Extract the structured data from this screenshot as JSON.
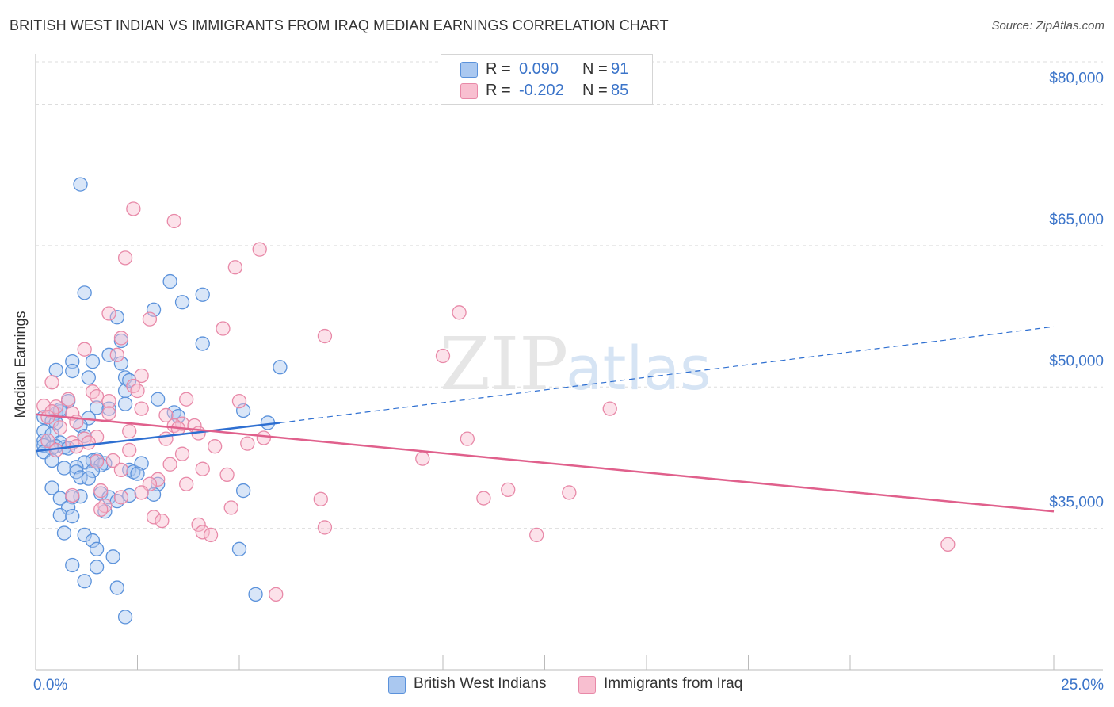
{
  "header": {
    "title": "BRITISH WEST INDIAN VS IMMIGRANTS FROM IRAQ MEDIAN EARNINGS CORRELATION CHART",
    "source": "Source: ZipAtlas.com"
  },
  "watermark": {
    "zip": "ZIP",
    "atlas": "atlas"
  },
  "colors": {
    "blue_fill": "#aac8f0",
    "blue_stroke": "#5b92db",
    "blue_line": "#2e6fd1",
    "pink_fill": "#f8bfd0",
    "pink_stroke": "#e889a8",
    "pink_line": "#e0608c",
    "axis_text": "#3b74c9",
    "grid": "#dddddd"
  },
  "legend": {
    "items": [
      {
        "r_label": "R =",
        "r_value": "0.090",
        "n_label": "N =",
        "n_value": "91"
      },
      {
        "r_label": "R =",
        "r_value": "-0.202",
        "n_label": "N =",
        "n_value": "85"
      }
    ]
  },
  "chart_data": {
    "type": "scatter",
    "title": "BRITISH WEST INDIAN VS IMMIGRANTS FROM IRAQ MEDIAN EARNINGS CORRELATION CHART",
    "xlabel": "",
    "ylabel": "Median Earnings",
    "x_unit": "%",
    "xlim": [
      0,
      25
    ],
    "ylim": [
      20000,
      84500
    ],
    "x_tick_labels": [
      "0.0%",
      "25.0%"
    ],
    "y_ticks": [
      35000,
      50000,
      65000,
      80000
    ],
    "y_tick_labels": [
      "$35,000",
      "$50,000",
      "$65,000",
      "$80,000"
    ],
    "grid": true,
    "legend_position": "top-center",
    "series": [
      {
        "name": "British West Indians",
        "r": 0.09,
        "n": 91,
        "trend": {
          "x": [
            0.0,
            6.0
          ],
          "y": [
            43200,
            46200
          ]
        },
        "trend_extension": {
          "x": [
            6.0,
            25.0
          ],
          "y": [
            46200,
            56400
          ]
        },
        "points": [
          [
            1.1,
            71500
          ],
          [
            1.2,
            60000
          ],
          [
            3.3,
            61200
          ],
          [
            4.1,
            59800
          ],
          [
            3.6,
            59000
          ],
          [
            2.9,
            58200
          ],
          [
            2.0,
            57400
          ],
          [
            2.1,
            54900
          ],
          [
            1.8,
            53400
          ],
          [
            1.4,
            52700
          ],
          [
            0.9,
            52700
          ],
          [
            0.5,
            51800
          ],
          [
            0.9,
            51700
          ],
          [
            6.0,
            52100
          ],
          [
            2.1,
            52500
          ],
          [
            1.3,
            51000
          ],
          [
            2.2,
            51000
          ],
          [
            2.2,
            49600
          ],
          [
            2.2,
            48200
          ],
          [
            3.0,
            48700
          ],
          [
            3.4,
            47300
          ],
          [
            0.8,
            48500
          ],
          [
            1.5,
            47800
          ],
          [
            1.8,
            47700
          ],
          [
            5.1,
            47500
          ],
          [
            0.5,
            47200
          ],
          [
            0.6,
            47400
          ],
          [
            0.2,
            46800
          ],
          [
            1.3,
            46700
          ],
          [
            3.5,
            46900
          ],
          [
            0.4,
            46400
          ],
          [
            0.5,
            46200
          ],
          [
            1.1,
            45900
          ],
          [
            5.7,
            46200
          ],
          [
            0.2,
            45300
          ],
          [
            0.4,
            45000
          ],
          [
            1.2,
            44800
          ],
          [
            0.2,
            44300
          ],
          [
            0.6,
            44100
          ],
          [
            0.2,
            43800
          ],
          [
            0.5,
            43700
          ],
          [
            0.7,
            43600
          ],
          [
            0.4,
            43500
          ],
          [
            0.2,
            43100
          ],
          [
            1.5,
            42300
          ],
          [
            1.4,
            42200
          ],
          [
            0.4,
            42200
          ],
          [
            1.2,
            42000
          ],
          [
            1.7,
            41900
          ],
          [
            1.6,
            41700
          ],
          [
            1.0,
            41500
          ],
          [
            0.7,
            41400
          ],
          [
            1.0,
            41000
          ],
          [
            1.4,
            41100
          ],
          [
            2.3,
            41200
          ],
          [
            1.1,
            40400
          ],
          [
            1.3,
            40300
          ],
          [
            2.4,
            41000
          ],
          [
            2.6,
            41900
          ],
          [
            2.5,
            40800
          ],
          [
            0.4,
            39300
          ],
          [
            3.0,
            39700
          ],
          [
            1.6,
            38700
          ],
          [
            1.1,
            38400
          ],
          [
            2.3,
            38500
          ],
          [
            0.6,
            38200
          ],
          [
            0.9,
            38300
          ],
          [
            2.9,
            38600
          ],
          [
            1.8,
            38300
          ],
          [
            5.1,
            39000
          ],
          [
            2.0,
            37900
          ],
          [
            0.8,
            37200
          ],
          [
            1.7,
            36800
          ],
          [
            0.6,
            36400
          ],
          [
            0.9,
            36300
          ],
          [
            0.7,
            34500
          ],
          [
            1.2,
            34300
          ],
          [
            1.4,
            33700
          ],
          [
            1.5,
            32800
          ],
          [
            5.0,
            32800
          ],
          [
            1.9,
            32000
          ],
          [
            0.9,
            31100
          ],
          [
            1.5,
            30900
          ],
          [
            1.2,
            29400
          ],
          [
            2.0,
            28700
          ],
          [
            5.4,
            28000
          ],
          [
            2.2,
            25600
          ],
          [
            0.6,
            47600
          ],
          [
            2.3,
            50700
          ],
          [
            4.1,
            54600
          ],
          [
            0.8,
            43500
          ]
        ]
      },
      {
        "name": "Immigrants from Iraq",
        "r": -0.202,
        "n": 85,
        "trend": {
          "x": [
            0.0,
            25.0
          ],
          "y": [
            47100,
            36800
          ]
        },
        "points": [
          [
            2.4,
            68900
          ],
          [
            3.4,
            67600
          ],
          [
            5.5,
            64600
          ],
          [
            2.2,
            63700
          ],
          [
            4.9,
            62700
          ],
          [
            10.4,
            57900
          ],
          [
            1.8,
            57800
          ],
          [
            2.8,
            57200
          ],
          [
            4.6,
            56200
          ],
          [
            7.1,
            55400
          ],
          [
            2.1,
            55200
          ],
          [
            1.2,
            54000
          ],
          [
            10.0,
            53300
          ],
          [
            2.0,
            53400
          ],
          [
            2.6,
            51200
          ],
          [
            0.4,
            50500
          ],
          [
            2.4,
            50100
          ],
          [
            2.5,
            49600
          ],
          [
            1.4,
            49500
          ],
          [
            1.5,
            49000
          ],
          [
            3.7,
            48700
          ],
          [
            0.8,
            48700
          ],
          [
            5.0,
            48500
          ],
          [
            1.8,
            48500
          ],
          [
            0.2,
            48000
          ],
          [
            0.5,
            47900
          ],
          [
            14.1,
            47700
          ],
          [
            0.4,
            47400
          ],
          [
            2.6,
            47700
          ],
          [
            0.9,
            47200
          ],
          [
            1.8,
            47200
          ],
          [
            3.2,
            47000
          ],
          [
            3.6,
            46100
          ],
          [
            0.3,
            46800
          ],
          [
            1.0,
            46300
          ],
          [
            3.4,
            45900
          ],
          [
            3.9,
            45900
          ],
          [
            0.6,
            45700
          ],
          [
            3.5,
            45600
          ],
          [
            4.0,
            45100
          ],
          [
            2.3,
            45300
          ],
          [
            5.6,
            44600
          ],
          [
            1.5,
            44700
          ],
          [
            1.2,
            44500
          ],
          [
            3.2,
            44500
          ],
          [
            10.6,
            44500
          ],
          [
            0.3,
            44300
          ],
          [
            0.9,
            44100
          ],
          [
            1.3,
            44100
          ],
          [
            5.2,
            44000
          ],
          [
            2.3,
            43300
          ],
          [
            1.0,
            43700
          ],
          [
            4.4,
            43700
          ],
          [
            0.5,
            43300
          ],
          [
            3.6,
            42900
          ],
          [
            9.5,
            42400
          ],
          [
            1.5,
            42100
          ],
          [
            1.9,
            42200
          ],
          [
            2.1,
            41200
          ],
          [
            4.1,
            41300
          ],
          [
            3.3,
            41800
          ],
          [
            4.7,
            40700
          ],
          [
            3.0,
            40200
          ],
          [
            2.8,
            39700
          ],
          [
            3.7,
            39700
          ],
          [
            11.6,
            39100
          ],
          [
            2.6,
            38800
          ],
          [
            1.6,
            39000
          ],
          [
            13.1,
            38800
          ],
          [
            0.9,
            38500
          ],
          [
            2.1,
            38300
          ],
          [
            7.0,
            38100
          ],
          [
            11.0,
            38200
          ],
          [
            1.7,
            37400
          ],
          [
            1.6,
            37000
          ],
          [
            4.8,
            37200
          ],
          [
            2.9,
            36200
          ],
          [
            3.1,
            35800
          ],
          [
            4.0,
            35400
          ],
          [
            7.1,
            35100
          ],
          [
            4.1,
            34600
          ],
          [
            4.3,
            34300
          ],
          [
            12.3,
            34300
          ],
          [
            22.4,
            33300
          ],
          [
            5.9,
            28000
          ]
        ]
      }
    ]
  }
}
